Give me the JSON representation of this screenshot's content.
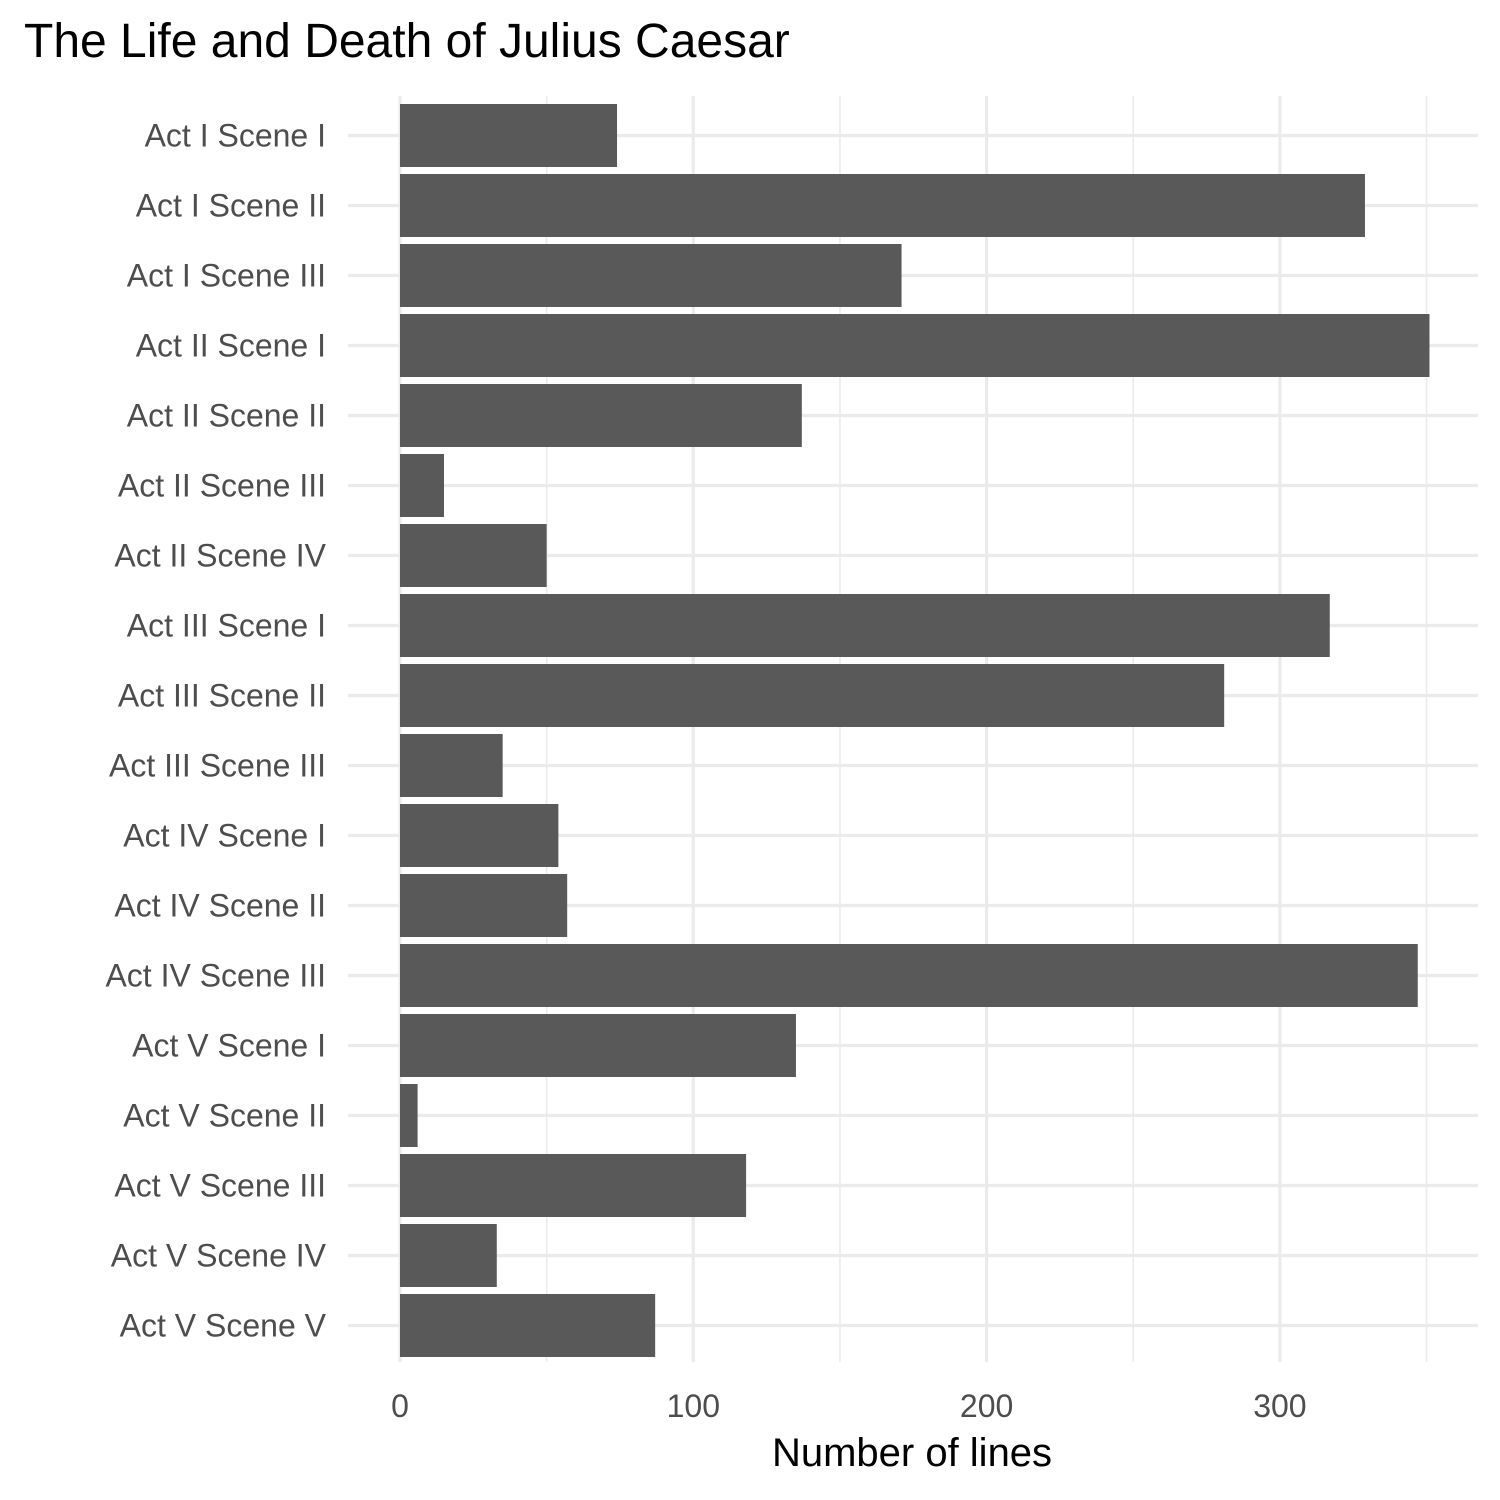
{
  "chart_data": {
    "type": "bar",
    "orientation": "horizontal",
    "title": "The Life and Death of Julius Caesar",
    "xlabel": "Number of lines",
    "ylabel": "",
    "categories": [
      "Act I Scene I",
      "Act I Scene II",
      "Act I Scene III",
      "Act II Scene I",
      "Act II Scene II",
      "Act II Scene III",
      "Act II Scene IV",
      "Act III Scene I",
      "Act III Scene II",
      "Act III Scene III",
      "Act IV Scene I",
      "Act IV Scene II",
      "Act IV Scene III",
      "Act V Scene I",
      "Act V Scene II",
      "Act V Scene III",
      "Act V Scene IV",
      "Act V Scene V"
    ],
    "values": [
      74,
      329,
      171,
      351,
      137,
      15,
      50,
      317,
      281,
      35,
      54,
      57,
      347,
      135,
      6,
      118,
      33,
      87
    ],
    "xlim": [
      0,
      367
    ],
    "xticks": [
      0,
      100,
      200,
      300
    ],
    "xtick_labels": [
      "0",
      "100",
      "200",
      "300"
    ],
    "grid": true,
    "bar_color": "#595959",
    "grid_color": "#ebebeb"
  }
}
